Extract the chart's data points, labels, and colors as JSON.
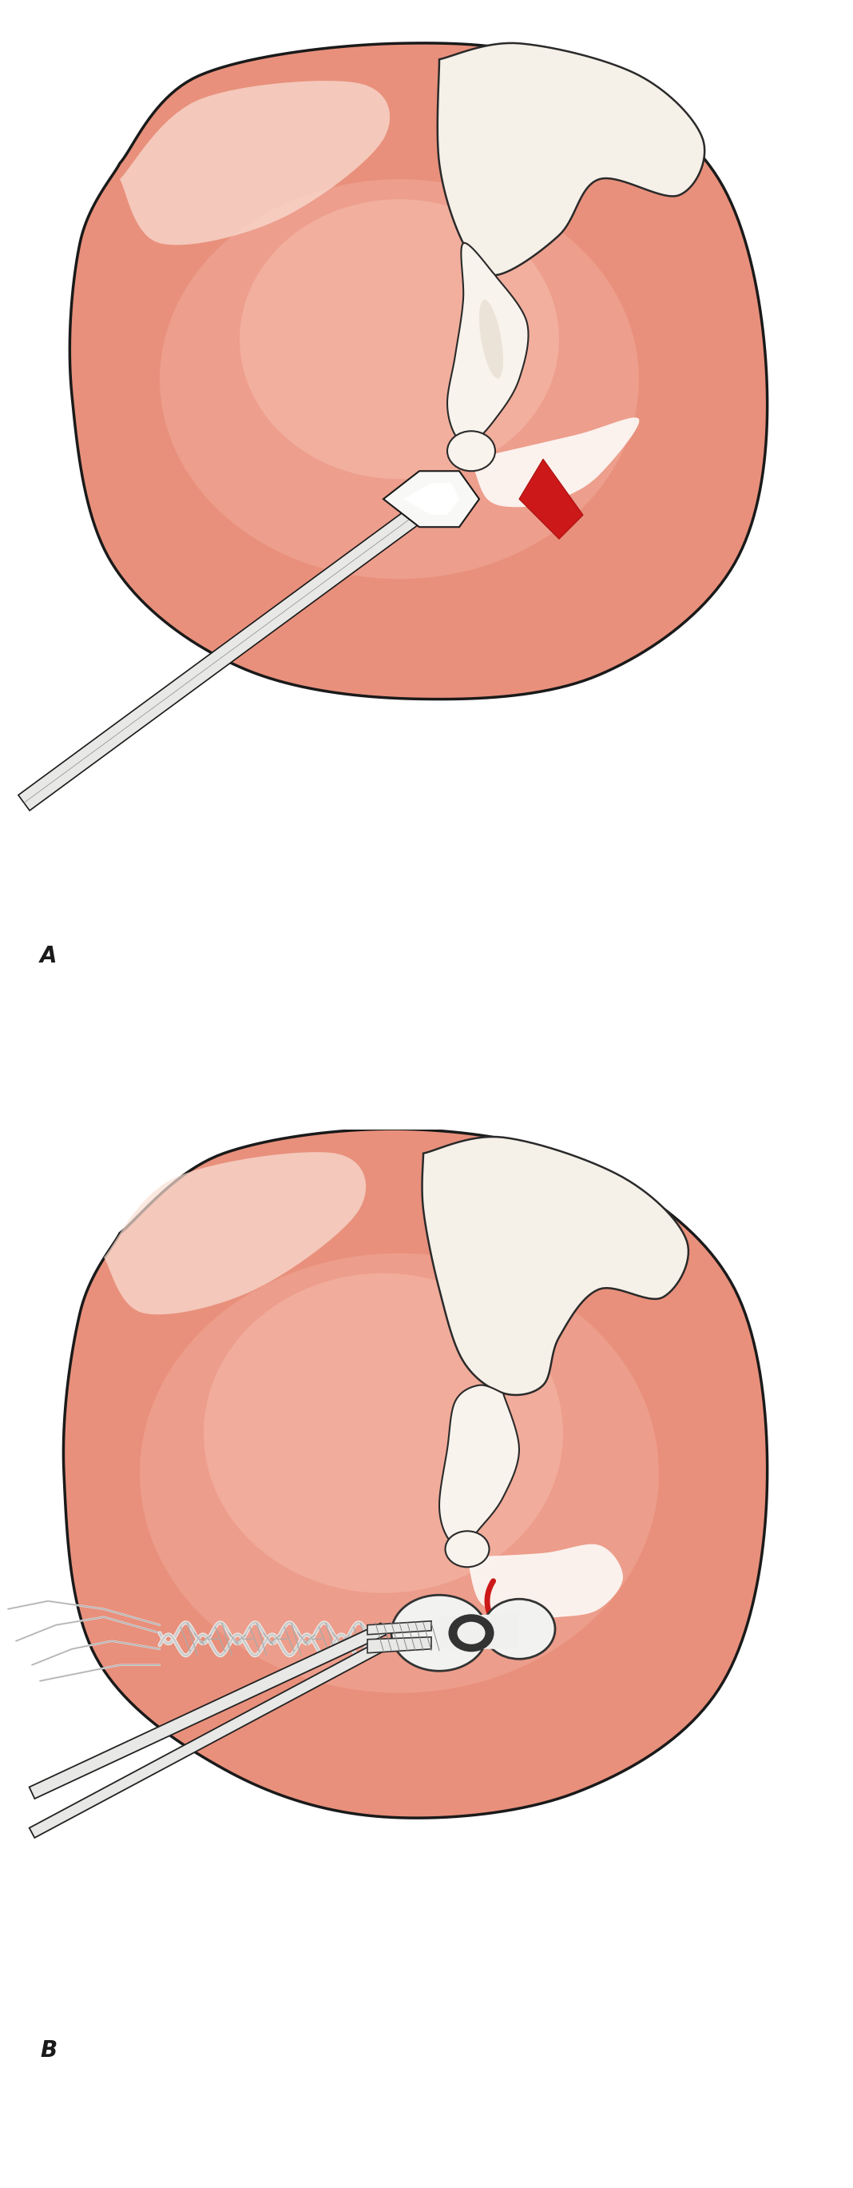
{
  "fig_width": 10.68,
  "fig_height": 27.37,
  "bg_color": "#ffffff",
  "ear_pink_dark": "#e8907e",
  "ear_pink_mid": "#f0a898",
  "ear_pink_light": "#f5c5b5",
  "ear_cream": "#f8ede5",
  "ear_outline": "#1a1a1a",
  "malleus_cream": "#f2ede0",
  "malleus_white": "#faf7f2",
  "malleus_outline": "#2a2a2a",
  "red_accent": "#cc2020",
  "white_tissue": "#fdfaf5",
  "instrument_light": "#f0f0ee",
  "instrument_mid": "#d8d8d6",
  "instrument_dark": "#222222",
  "grommet_white": "#f5f5f5",
  "grommet_ring": "#cccccc",
  "grommet_dark": "#444444",
  "label_A": "A",
  "label_B": "B",
  "label_fontsize": 20,
  "label_fontstyle": "italic"
}
